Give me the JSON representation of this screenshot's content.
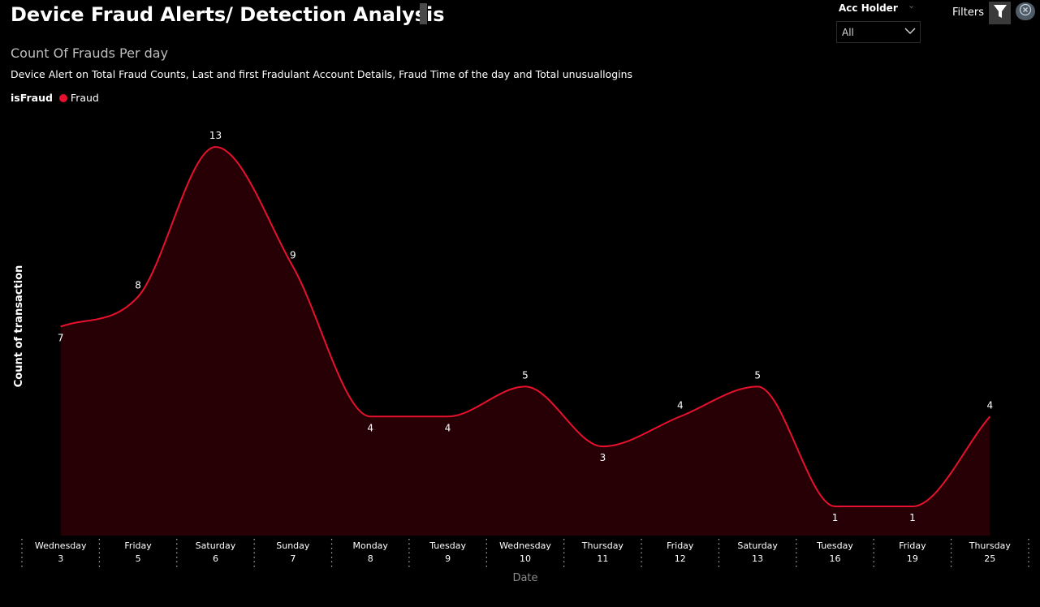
{
  "header": {
    "title": "Device Fraud Alerts/ Detection Analysis",
    "filters_label": "Filters"
  },
  "slicer": {
    "label": "Acc Holder",
    "value": "All"
  },
  "icons": {
    "filter": "filter-funnel-icon",
    "close": "close-circle-icon",
    "chevron": "chevron-down-icon"
  },
  "chart_data": {
    "type": "area",
    "title": "Count Of Frauds Per day",
    "subtitle": "Device Alert on Total Fraud Counts, Last and first Fradulant Account Details, Fraud Time of the day and Total unusuallogins",
    "xlabel": "Date",
    "ylabel": "Count of transaction",
    "legend": {
      "title": "isFraud",
      "position": "top-left"
    },
    "categories": [
      {
        "day": "Wednesday",
        "date": "3"
      },
      {
        "day": "Friday",
        "date": "5"
      },
      {
        "day": "Saturday",
        "date": "6"
      },
      {
        "day": "Sunday",
        "date": "7"
      },
      {
        "day": "Monday",
        "date": "8"
      },
      {
        "day": "Tuesday",
        "date": "9"
      },
      {
        "day": "Wednesday",
        "date": "10"
      },
      {
        "day": "Thursday",
        "date": "11"
      },
      {
        "day": "Friday",
        "date": "12"
      },
      {
        "day": "Saturday",
        "date": "13"
      },
      {
        "day": "Tuesday",
        "date": "16"
      },
      {
        "day": "Friday",
        "date": "19"
      },
      {
        "day": "Thursday",
        "date": "25"
      }
    ],
    "series": [
      {
        "name": "Fraud",
        "color": "#e8112d",
        "fill": "#260004",
        "values": [
          7,
          8,
          13,
          9,
          4,
          4,
          5,
          3,
          4,
          5,
          1,
          1,
          4
        ]
      }
    ],
    "label_positions": [
      "below",
      "above",
      "above",
      "above",
      "below",
      "below",
      "above",
      "below",
      "above",
      "above",
      "below",
      "below",
      "above"
    ],
    "ylim": [
      0,
      13
    ],
    "grid": false
  }
}
